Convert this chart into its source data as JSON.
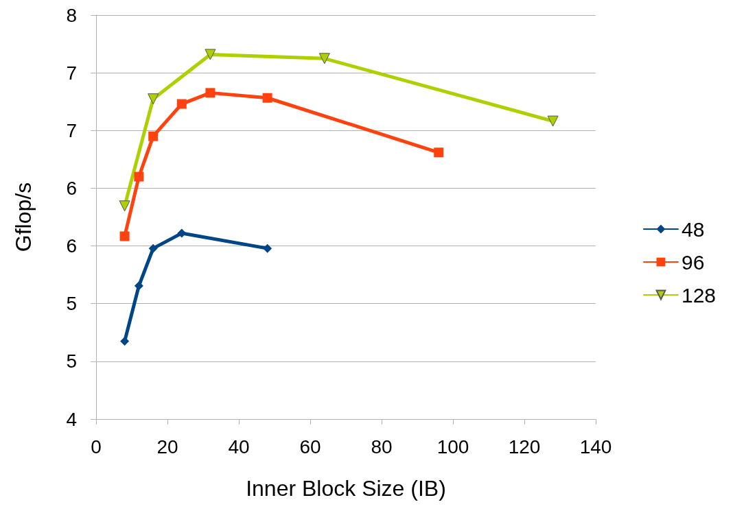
{
  "chart_data": {
    "type": "line",
    "xlabel": "Inner Block Size (IB)",
    "ylabel": "Gflop/s",
    "xlim": [
      0,
      140
    ],
    "xticks": [
      0,
      20,
      40,
      60,
      80,
      100,
      120,
      140
    ],
    "ylim": [
      4,
      8
    ],
    "yticks": [
      4,
      {
        "value": 4.571,
        "label": "5"
      },
      {
        "value": 5.143,
        "label": "5"
      },
      {
        "value": 5.714,
        "label": "6"
      },
      {
        "value": 6.286,
        "label": "6"
      },
      {
        "value": 6.857,
        "label": "7"
      },
      {
        "value": 7.429,
        "label": "7"
      },
      8
    ],
    "grid": "y",
    "legend": "right",
    "line_style": "solid",
    "series": [
      {
        "name": "48",
        "color": "#004586",
        "marker": "diamond",
        "x": [
          8,
          12,
          16,
          24,
          48
        ],
        "values": [
          4.77,
          5.32,
          5.69,
          5.84,
          5.69
        ]
      },
      {
        "name": "96",
        "color": "#ff420e",
        "marker": "square",
        "x": [
          8,
          12,
          16,
          24,
          32,
          48,
          96
        ],
        "values": [
          5.81,
          6.4,
          6.8,
          7.12,
          7.23,
          7.18,
          6.64
        ]
      },
      {
        "name": "128",
        "color": "#aecf00",
        "marker": "triangle",
        "x": [
          8,
          16,
          32,
          64,
          128
        ],
        "values": [
          6.11,
          7.17,
          7.61,
          7.57,
          6.95
        ]
      }
    ]
  }
}
